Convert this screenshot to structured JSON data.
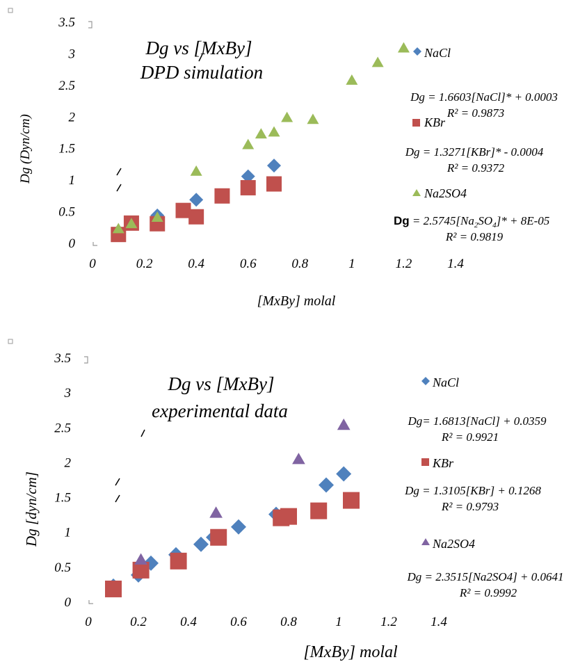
{
  "chart_data": [
    {
      "type": "scatter",
      "title": "Dg  vs [MxBy]",
      "subtitle": "DPD simulation",
      "xlabel": "[MxBy] molal",
      "ylabel": "Dg (Dyn/cm)",
      "xlim": [
        0,
        1.4
      ],
      "ylim": [
        0,
        3.5
      ],
      "x_ticks": [
        "0",
        "0.2",
        "0.4",
        "0.6",
        "0.8",
        "1",
        "1.2",
        "1.4"
      ],
      "y_ticks": [
        "0",
        "0.5",
        "1",
        "1.5",
        "2",
        "2.5",
        "3",
        "3.5"
      ],
      "grid": false,
      "legend_position": "right",
      "series": [
        {
          "name": "NaCl",
          "marker": "diamond",
          "color": "#4F81BD",
          "x": [
            0.1,
            0.15,
            0.25,
            0.4,
            0.6,
            0.7
          ],
          "y": [
            0.18,
            0.3,
            0.43,
            0.68,
            1.05,
            1.22
          ],
          "equation": "Dg = 1.6603[NaCl]*  +  0.0003",
          "r2": "R² = 0.9873"
        },
        {
          "name": "KBr",
          "marker": "square",
          "color": "#C0504D",
          "x": [
            0.1,
            0.15,
            0.25,
            0.35,
            0.4,
            0.5,
            0.6,
            0.7
          ],
          "y": [
            0.13,
            0.31,
            0.3,
            0.51,
            0.41,
            0.74,
            0.87,
            0.93
          ],
          "equation": "Dg = 1.3271[KBr]* -  0.0004",
          "r2": "R² = 0.9372"
        },
        {
          "name": "Na2SO4",
          "marker": "triangle",
          "color": "#9BBB59",
          "x": [
            0.1,
            0.15,
            0.25,
            0.4,
            0.6,
            0.65,
            0.7,
            0.75,
            0.85,
            1.0,
            1.1,
            1.2
          ],
          "y": [
            0.22,
            0.3,
            0.4,
            1.13,
            1.55,
            1.72,
            1.75,
            1.98,
            1.95,
            2.57,
            2.85,
            3.08
          ],
          "equation": "Dg = 2.5745[Na2SO4]* + 8E-05",
          "r2": "R² = 0.9819"
        }
      ]
    },
    {
      "type": "scatter",
      "title": "Dg  vs [MxBy]",
      "subtitle": "experimental data",
      "xlabel": "[MxBy] molal",
      "ylabel": "Dg [dyn/cm]",
      "xlim": [
        0,
        1.4
      ],
      "ylim": [
        0,
        3.5
      ],
      "x_ticks": [
        "0",
        "0.2",
        "0.4",
        "0.6",
        "0.8",
        "1",
        "1.2",
        "1.4"
      ],
      "y_ticks": [
        "0",
        "0.5",
        "1",
        "1.5",
        "2",
        "2.5",
        "3",
        "3.5"
      ],
      "grid": false,
      "legend_position": "right",
      "series": [
        {
          "name": "NaCl",
          "marker": "diamond",
          "color": "#4F81BD",
          "x": [
            0.1,
            0.2,
            0.25,
            0.35,
            0.45,
            0.5,
            0.6,
            0.75,
            0.95,
            1.02
          ],
          "y": [
            0.22,
            0.38,
            0.55,
            0.67,
            0.82,
            0.92,
            1.07,
            1.25,
            1.67,
            1.83
          ],
          "equation": "Dg= 1.6813[NaCl] + 0.0359",
          "r2": "R² = 0.9921"
        },
        {
          "name": "KBr",
          "marker": "square",
          "color": "#C0504D",
          "x": [
            0.1,
            0.21,
            0.36,
            0.52,
            0.77,
            0.8,
            0.92,
            1.05
          ],
          "y": [
            0.18,
            0.45,
            0.58,
            0.92,
            1.2,
            1.22,
            1.3,
            1.45
          ],
          "equation": "Dg = 1.3105[KBr] + 0.1268",
          "r2": "R² = 0.9793"
        },
        {
          "name": "Na2SO4",
          "marker": "triangle",
          "color": "#8064A2",
          "x": [
            0.21,
            0.51,
            0.84,
            1.02
          ],
          "y": [
            0.6,
            1.27,
            2.04,
            2.53
          ],
          "equation": "Dg = 2.3515[Na2SO4] + 0.0641",
          "r2": "R² = 0.9992"
        }
      ]
    }
  ]
}
